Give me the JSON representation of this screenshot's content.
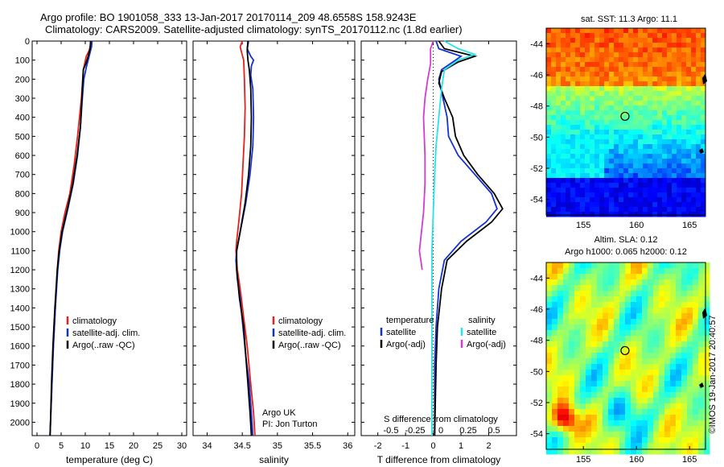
{
  "header": {
    "line1": "Argo profile: BO 1901058_333 13-Jan-2017 20170114_209 48.6558S 158.9243E",
    "line2": "Climatology: CARS2009. Satellite-adjusted climatology: synTS_20170112.nc (1.8d earlier)"
  },
  "colors": {
    "red": "#e8201c",
    "blue": "#1432d2",
    "black": "#000000",
    "cyan": "#25e6e6",
    "magenta": "#d23cd2"
  },
  "chart_data": [
    {
      "name": "temperature-profile",
      "type": "line",
      "xlabel": "temperature (deg C)",
      "ylabel": "",
      "xlim": [
        -1,
        31
      ],
      "ylim": [
        2070,
        0
      ],
      "xticks": [
        "0",
        "5",
        "10",
        "15",
        "20",
        "25",
        "30"
      ],
      "yticks": [
        "0",
        "100",
        "200",
        "300",
        "400",
        "500",
        "600",
        "700",
        "800",
        "900",
        "1000",
        "1100",
        "1200",
        "1300",
        "1400",
        "1500",
        "1600",
        "1700",
        "1800",
        "1900",
        "2000"
      ],
      "series": [
        {
          "name": "climatology",
          "color": "red",
          "points": [
            [
              11.3,
              0
            ],
            [
              10.8,
              50
            ],
            [
              10.2,
              80
            ],
            [
              9.6,
              150
            ],
            [
              9.2,
              300
            ],
            [
              8.4,
              500
            ],
            [
              7.7,
              650
            ],
            [
              6.8,
              800
            ],
            [
              5.8,
              900
            ],
            [
              5.0,
              1000
            ],
            [
              4.5,
              1100
            ],
            [
              4.2,
              1200
            ],
            [
              3.8,
              1400
            ],
            [
              3.4,
              1600
            ],
            [
              3.1,
              1800
            ],
            [
              2.8,
              2000
            ],
            [
              2.7,
              2070
            ]
          ]
        },
        {
          "name": "satellite-adj. clim.",
          "color": "blue",
          "points": [
            [
              11.4,
              0
            ],
            [
              11.3,
              30
            ],
            [
              11.0,
              60
            ],
            [
              10.2,
              140
            ],
            [
              9.7,
              200
            ],
            [
              9.4,
              300
            ],
            [
              9.0,
              450
            ],
            [
              8.4,
              600
            ],
            [
              7.5,
              750
            ],
            [
              6.4,
              880
            ],
            [
              5.3,
              1000
            ],
            [
              4.7,
              1100
            ],
            [
              4.3,
              1200
            ],
            [
              3.8,
              1400
            ],
            [
              3.4,
              1600
            ],
            [
              3.1,
              1800
            ],
            [
              2.8,
              2000
            ],
            [
              2.7,
              2070
            ]
          ]
        },
        {
          "name": "Argo(..raw -QC)",
          "color": "black",
          "points": [
            [
              11.1,
              0
            ],
            [
              11.0,
              40
            ],
            [
              10.6,
              80
            ],
            [
              10.1,
              120
            ],
            [
              9.6,
              150
            ],
            [
              9.5,
              200
            ],
            [
              9.3,
              300
            ],
            [
              9.0,
              450
            ],
            [
              8.3,
              600
            ],
            [
              7.4,
              750
            ],
            [
              6.3,
              880
            ],
            [
              5.2,
              1000
            ],
            [
              4.6,
              1100
            ],
            [
              4.2,
              1200
            ],
            [
              3.7,
              1400
            ],
            [
              3.3,
              1600
            ],
            [
              3.0,
              1800
            ],
            [
              2.8,
              2000
            ],
            [
              2.7,
              2070
            ]
          ]
        }
      ],
      "legend": [
        "climatology",
        "satellite-adj. clim.",
        "Argo(..raw -QC)"
      ]
    },
    {
      "name": "salinity-profile",
      "type": "line",
      "xlabel": "salinity",
      "xlim": [
        33.8,
        36.1
      ],
      "ylim": [
        2070,
        0
      ],
      "xticks": [
        "34",
        "34.5",
        "35",
        "35.5",
        "36"
      ],
      "series": [
        {
          "name": "climatology",
          "color": "red",
          "points": [
            [
              34.5,
              0
            ],
            [
              34.47,
              30
            ],
            [
              34.49,
              60
            ],
            [
              34.52,
              100
            ],
            [
              34.53,
              200
            ],
            [
              34.54,
              350
            ],
            [
              34.53,
              500
            ],
            [
              34.51,
              650
            ],
            [
              34.49,
              800
            ],
            [
              34.45,
              950
            ],
            [
              34.42,
              1050
            ],
            [
              34.41,
              1100
            ],
            [
              34.43,
              1200
            ],
            [
              34.47,
              1300
            ],
            [
              34.52,
              1450
            ],
            [
              34.57,
              1600
            ],
            [
              34.62,
              1800
            ],
            [
              34.66,
              1950
            ],
            [
              34.68,
              2070
            ]
          ]
        },
        {
          "name": "satellite-adj. clim.",
          "color": "blue",
          "points": [
            [
              34.59,
              0
            ],
            [
              34.57,
              40
            ],
            [
              34.62,
              80
            ],
            [
              34.66,
              100
            ],
            [
              34.63,
              130
            ],
            [
              34.62,
              180
            ],
            [
              34.65,
              250
            ],
            [
              34.66,
              400
            ],
            [
              34.65,
              550
            ],
            [
              34.61,
              700
            ],
            [
              34.55,
              850
            ],
            [
              34.47,
              1000
            ],
            [
              34.42,
              1100
            ],
            [
              34.41,
              1150
            ],
            [
              34.43,
              1250
            ],
            [
              34.47,
              1350
            ],
            [
              34.51,
              1500
            ],
            [
              34.55,
              1650
            ],
            [
              34.6,
              1800
            ],
            [
              34.63,
              1950
            ],
            [
              34.65,
              2070
            ]
          ]
        },
        {
          "name": "Argo(..raw -QC)",
          "color": "black",
          "points": [
            [
              34.58,
              0
            ],
            [
              34.57,
              50
            ],
            [
              34.58,
              100
            ],
            [
              34.6,
              150
            ],
            [
              34.62,
              250
            ],
            [
              34.63,
              400
            ],
            [
              34.62,
              550
            ],
            [
              34.59,
              700
            ],
            [
              34.54,
              850
            ],
            [
              34.47,
              1000
            ],
            [
              34.42,
              1100
            ],
            [
              34.42,
              1200
            ],
            [
              34.46,
              1350
            ],
            [
              34.52,
              1500
            ],
            [
              34.55,
              1650
            ],
            [
              34.58,
              1800
            ],
            [
              34.61,
              1950
            ],
            [
              34.63,
              2070
            ]
          ]
        }
      ],
      "legend": [
        "climatology",
        "satellite-adj. clim.",
        "Argo(..raw -QC)"
      ],
      "annotation": [
        "Argo UK",
        "PI: Jon Turton"
      ]
    },
    {
      "name": "difference-profile",
      "type": "line",
      "xlabel": "T difference from climatology",
      "secondary_xlabel": "S difference from climatology",
      "xlim": [
        -2.6,
        3.0
      ],
      "ylim": [
        2070,
        0
      ],
      "xticks": [
        "-2",
        "-1",
        "0",
        "1",
        "2"
      ],
      "secondary_xticks": [
        "-0.5",
        "-0.25",
        "0",
        "0.25",
        "0.5"
      ],
      "zero_line": "dotted",
      "series": [
        {
          "name": "temperature satellite",
          "color": "blue",
          "points": [
            [
              0.1,
              0
            ],
            [
              0.2,
              40
            ],
            [
              1.0,
              80
            ],
            [
              0.8,
              100
            ],
            [
              0.3,
              150
            ],
            [
              0.2,
              200
            ],
            [
              0.35,
              300
            ],
            [
              0.5,
              400
            ],
            [
              0.55,
              500
            ],
            [
              0.9,
              600
            ],
            [
              1.5,
              700
            ],
            [
              2.1,
              800
            ],
            [
              2.3,
              880
            ],
            [
              1.9,
              950
            ],
            [
              1.0,
              1050
            ],
            [
              0.4,
              1150
            ],
            [
              0.2,
              1300
            ],
            [
              0.1,
              1500
            ],
            [
              0.05,
              1700
            ],
            [
              0.05,
              2070
            ]
          ]
        },
        {
          "name": "temperature Argo(-adj)",
          "color": "black",
          "points": [
            [
              0.2,
              0
            ],
            [
              0.4,
              40
            ],
            [
              1.5,
              80
            ],
            [
              0.9,
              110
            ],
            [
              0.3,
              160
            ],
            [
              0.2,
              220
            ],
            [
              0.4,
              300
            ],
            [
              0.7,
              400
            ],
            [
              0.8,
              500
            ],
            [
              1.1,
              600
            ],
            [
              1.6,
              700
            ],
            [
              2.2,
              800
            ],
            [
              2.5,
              880
            ],
            [
              2.1,
              950
            ],
            [
              1.2,
              1050
            ],
            [
              0.5,
              1150
            ],
            [
              0.3,
              1300
            ],
            [
              0.15,
              1500
            ],
            [
              0.1,
              1700
            ],
            [
              0.05,
              2070
            ]
          ]
        },
        {
          "name": "salinity satellite",
          "color": "cyan",
          "points": [
            [
              0.4,
              0
            ],
            [
              0.9,
              40
            ],
            [
              1.5,
              70
            ],
            [
              0.9,
              100
            ],
            [
              0.4,
              150
            ],
            [
              0.3,
              250
            ],
            [
              0.2,
              400
            ],
            [
              0.1,
              550
            ],
            [
              0.05,
              700
            ],
            [
              0.0,
              900
            ],
            [
              -0.05,
              1100
            ],
            [
              -0.05,
              1300
            ],
            [
              -0.05,
              1500
            ],
            [
              -0.05,
              1700
            ],
            [
              -0.05,
              1900
            ],
            [
              -0.05,
              2070
            ]
          ]
        },
        {
          "name": "salinity Argo(-adj)",
          "color": "magenta",
          "points": [
            [
              0.0,
              0
            ],
            [
              -0.1,
              40
            ],
            [
              -0.1,
              120
            ],
            [
              -0.2,
              200
            ],
            [
              -0.3,
              300
            ],
            [
              -0.35,
              400
            ],
            [
              -0.3,
              600
            ],
            [
              -0.3,
              750
            ],
            [
              -0.35,
              900
            ],
            [
              -0.5,
              1100
            ],
            [
              -0.4,
              1200
            ]
          ]
        }
      ],
      "legend_left": {
        "title": "temperature",
        "items": [
          "satellite",
          "Argo(-adj)"
        ]
      },
      "legend_right": {
        "title": "salinity",
        "items": [
          "satellite",
          "Argo(-adj)"
        ]
      }
    },
    {
      "name": "sst-map",
      "type": "heatmap",
      "title": "sat. SST: 11.3 Argo: 11.1",
      "xlim": [
        151.5,
        166.5
      ],
      "ylim": [
        -55,
        -43
      ],
      "xticks": [
        "155",
        "160",
        "165"
      ],
      "yticks": [
        "-44",
        "-46",
        "-48",
        "-50",
        "-52",
        "-54"
      ],
      "profile_marker": [
        158.92,
        -48.66
      ]
    },
    {
      "name": "sla-map",
      "type": "heatmap",
      "title": "Altim. SLA: 0.12",
      "subtitle": "Argo h1000: 0.065 h2000: 0.12",
      "xlim": [
        151.5,
        166.5
      ],
      "ylim": [
        -55,
        -43
      ],
      "xticks": [
        "155",
        "160",
        "165"
      ],
      "yticks": [
        "-44",
        "-46",
        "-48",
        "-50",
        "-52",
        "-54"
      ],
      "profile_marker": [
        158.92,
        -48.66
      ]
    }
  ],
  "watermark": "©IMOS 19-Jan-2017 20:40:57"
}
